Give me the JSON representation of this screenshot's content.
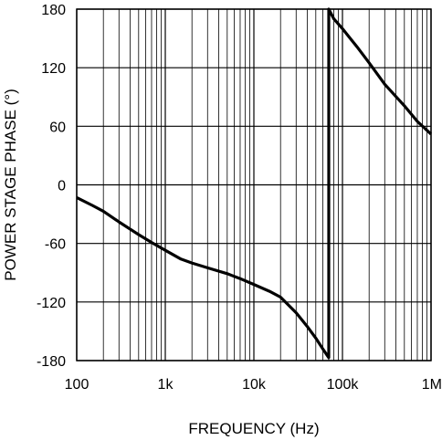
{
  "chart_data": {
    "type": "line",
    "title": "",
    "xlabel": "FREQUENCY (Hz)",
    "ylabel": "POWER STAGE PHASE (°)",
    "x_scale": "log",
    "xlim": [
      100,
      1000000
    ],
    "ylim": [
      -180,
      180
    ],
    "x_ticks": [
      100,
      1000,
      10000,
      100000,
      1000000
    ],
    "x_tick_labels": [
      "100",
      "1k",
      "10k",
      "100k",
      "1M"
    ],
    "y_ticks": [
      180,
      120,
      60,
      0,
      -60,
      -120,
      -180
    ],
    "y_tick_labels": [
      "180",
      "120",
      "60",
      "0",
      "-60",
      "-120",
      "-180"
    ],
    "grid": true,
    "legend": "none",
    "line_color": "#000000",
    "series": [
      {
        "x": [
          100,
          150,
          200,
          300,
          500,
          700,
          1000,
          1500,
          2000,
          3000,
          5000,
          7000,
          10000,
          15000,
          20000,
          30000,
          40000,
          50000,
          60000,
          70000,
          70001,
          80000,
          100000,
          150000,
          200000,
          300000,
          500000,
          700000,
          1000000
        ],
        "y": [
          -13,
          -21,
          -27,
          -38,
          -51,
          -59,
          -67,
          -76,
          -80,
          -85,
          -91,
          -96,
          -102,
          -109,
          -115,
          -131,
          -145,
          -157,
          -168,
          -177,
          180,
          170,
          160,
          140,
          125,
          103,
          81,
          65,
          52
        ]
      }
    ]
  }
}
